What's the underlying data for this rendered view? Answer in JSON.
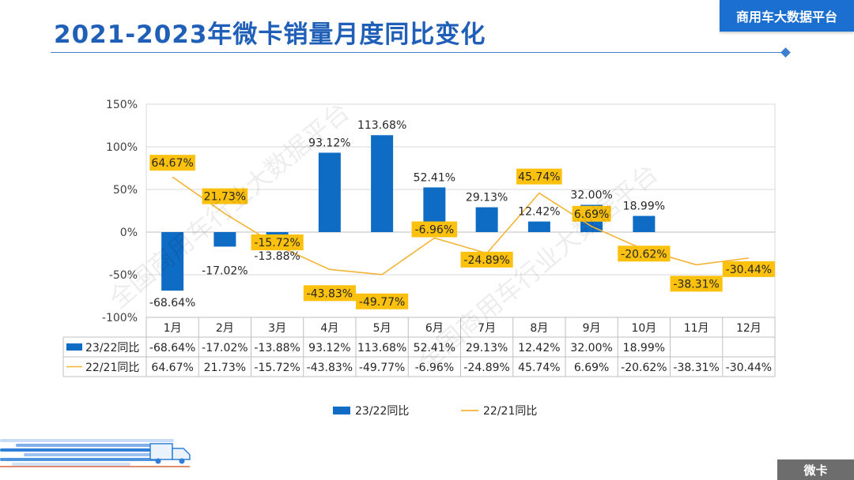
{
  "page": {
    "title": "2021-2023年微卡销量月度同比变化",
    "brand": "商用车大数据平台",
    "corner_tag": "微卡",
    "watermark": "全国商用车行业大数据平台"
  },
  "colors": {
    "bar": "#0f6cc4",
    "line": "#f5b335",
    "label_bg": "#fcc00e",
    "title": "#1f5fb8"
  },
  "chart_data": {
    "type": "bar",
    "categories": [
      "1月",
      "2月",
      "3月",
      "4月",
      "5月",
      "6月",
      "7月",
      "8月",
      "9月",
      "10月",
      "11月",
      "12月"
    ],
    "y_ticks": [
      "150%",
      "100%",
      "50%",
      "0%",
      "-50%",
      "-100%"
    ],
    "ylim": [
      -100,
      150
    ],
    "grid": true,
    "legend_position": "bottom",
    "series": [
      {
        "name": "23/22同比",
        "type": "bar",
        "values": [
          -68.64,
          -17.02,
          -13.88,
          93.12,
          113.68,
          52.41,
          29.13,
          12.42,
          32.0,
          18.99,
          null,
          null
        ],
        "labels": [
          "-68.64%",
          "-17.02%",
          "-13.88%",
          "93.12%",
          "113.68%",
          "52.41%",
          "29.13%",
          "12.42%",
          "32.00%",
          "18.99%",
          "",
          ""
        ]
      },
      {
        "name": "22/21同比",
        "type": "line",
        "values": [
          64.67,
          21.73,
          -15.72,
          -43.83,
          -49.77,
          -6.96,
          -24.89,
          45.74,
          6.69,
          -20.62,
          -38.31,
          -30.44
        ],
        "labels": [
          "64.67%",
          "21.73%",
          "-15.72%",
          "-43.83%",
          "-49.77%",
          "-6.96%",
          "-24.89%",
          "45.74%",
          "6.69%",
          "-20.62%",
          "-38.31%",
          "-30.44%"
        ]
      }
    ]
  }
}
